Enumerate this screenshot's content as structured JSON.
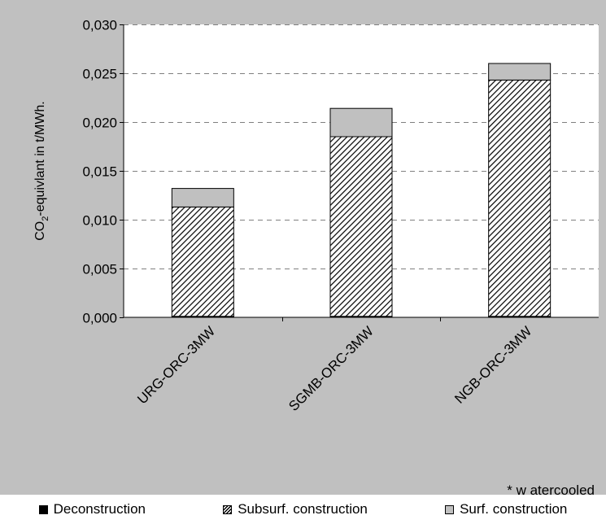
{
  "chart_data": {
    "type": "bar",
    "stacked": true,
    "categories": [
      "URG-ORC-3MW",
      "SGMB-ORC-3MW",
      "NGB-ORC-3MW"
    ],
    "series": [
      {
        "name": "Deconstruction",
        "values": [
          0.0001,
          0.0001,
          0.0001
        ],
        "color": "#000000",
        "pattern": "solid"
      },
      {
        "name": "Subsurf. construction",
        "values": [
          0.0112,
          0.0184,
          0.0242
        ],
        "color": "#000000",
        "pattern": "diagonal-hatch"
      },
      {
        "name": "Surf. construction",
        "values": [
          0.0019,
          0.0029,
          0.0017
        ],
        "color": "#c0c0c0",
        "pattern": "solid"
      }
    ],
    "ylabel_main": "CO",
    "ylabel_sub": "2",
    "ylabel_rest": "-equivlant in t/MWh.",
    "ylim": [
      0,
      0.03
    ],
    "yticks": [
      "0,000",
      "0,005",
      "0,010",
      "0,015",
      "0,020",
      "0,025",
      "0,030"
    ],
    "ytick_values": [
      0,
      0.005,
      0.01,
      0.015,
      0.02,
      0.025,
      0.03
    ],
    "grid": "horizontal dashed",
    "legend_position": "bottom",
    "footnote": "* w atercooled"
  },
  "legend": {
    "deconstruction": "Deconstruction",
    "subsurf": "Subsurf. construction",
    "surf": "Surf. construction"
  }
}
